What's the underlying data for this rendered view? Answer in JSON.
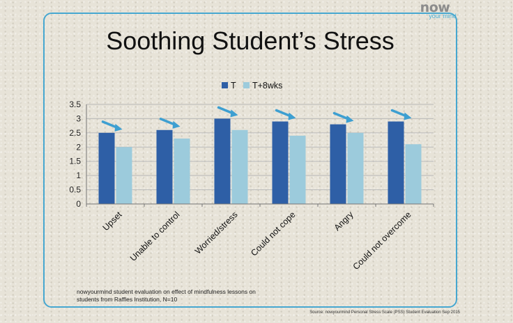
{
  "logo": {
    "brand": "now",
    "tagline": "your mind"
  },
  "slide": {
    "title": "Soothing Student’s Stress",
    "footnote_line1": "nowyourmind  student evaluation on  effect of mindfulness lessons on",
    "footnote_line2": "students from  Raffles Institution, N=10",
    "source": "Source: nowyourmind Personal Stress Scale (PSS)  Student Evaluation  Sep 2015"
  },
  "colors": {
    "series_T": "#2e5fa6",
    "series_T8": "#9ccbdc",
    "arrow": "#3d9fd1",
    "frame": "#46a7d0"
  },
  "chart_data": {
    "type": "bar",
    "title": "",
    "xlabel": "",
    "ylabel": "",
    "categories": [
      "Upset",
      "Unable to control",
      "Worried/stress",
      "Could not cope",
      "Angry",
      "Could not overcome"
    ],
    "series": [
      {
        "name": "T",
        "values": [
          2.5,
          2.6,
          3.0,
          2.9,
          2.8,
          2.9
        ]
      },
      {
        "name": "T+8wks",
        "values": [
          2.0,
          2.3,
          2.6,
          2.4,
          2.5,
          2.1
        ]
      }
    ],
    "ylim": [
      0,
      3.5
    ],
    "yticks": [
      "0",
      "0.5",
      "1",
      "1.5",
      "2",
      "2.5",
      "3",
      "3.5"
    ],
    "grid": true,
    "legend_position": "top-center",
    "annotations": "downward arrow icon above each category"
  }
}
